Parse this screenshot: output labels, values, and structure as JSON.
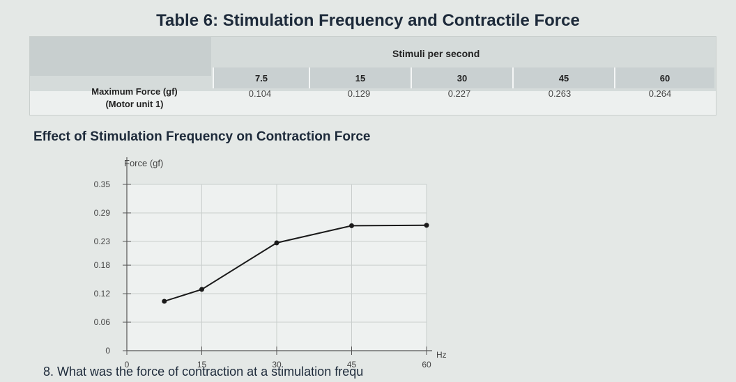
{
  "title": "Table 6: Stimulation Frequency and Contractile Force",
  "table": {
    "header_label": "Stimuli per second",
    "row_label_line1": "Maximum Force (gf)",
    "row_label_line2": "(Motor unit 1)",
    "columns": [
      "7.5",
      "15",
      "30",
      "45",
      "60"
    ],
    "values": [
      "0.104",
      "0.129",
      "0.227",
      "0.263",
      "0.264"
    ]
  },
  "chart_data": {
    "type": "line",
    "title": "Effect of Stimulation Frequency on Contraction Force",
    "xlabel": "Hz",
    "ylabel": "Force (gf)",
    "x": [
      7.5,
      15,
      30,
      45,
      60
    ],
    "y": [
      0.104,
      0.129,
      0.227,
      0.263,
      0.264
    ],
    "xlim": [
      0,
      60
    ],
    "ylim": [
      0,
      0.35
    ],
    "x_ticks": [
      "0",
      "15",
      "30",
      "45",
      "60"
    ],
    "y_ticks": [
      "0",
      "0.06",
      "0.12",
      "0.18",
      "0.23",
      "0.29",
      "0.35"
    ],
    "grid": true,
    "line_color": "#1a1a1a"
  },
  "question": "8. What was the force of contraction at a stimulation frequ"
}
